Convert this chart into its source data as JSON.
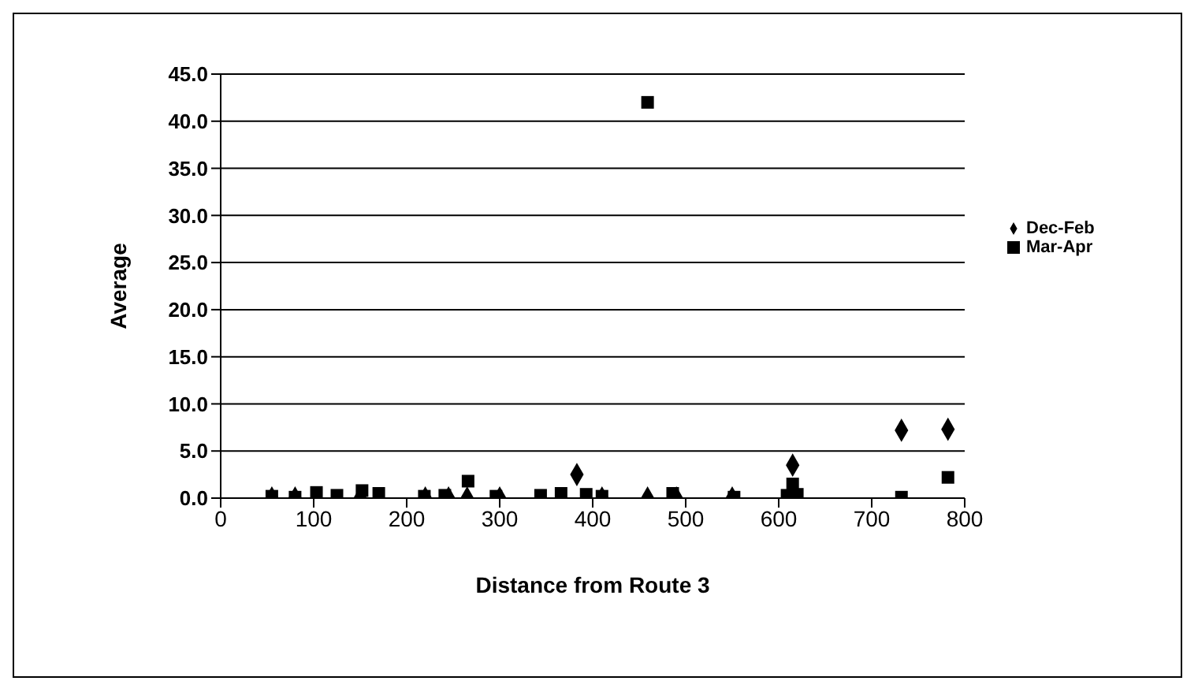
{
  "chart_data": {
    "type": "scatter",
    "xlabel": "Distance from Route 3",
    "ylabel": "Average",
    "xlim": [
      0,
      800
    ],
    "xticks": [
      0,
      100,
      200,
      300,
      400,
      500,
      600,
      700,
      800
    ],
    "ylim": [
      0,
      45
    ],
    "yticks": [
      {
        "value": 0,
        "label": "0.0"
      },
      {
        "value": 5,
        "label": "5.0"
      },
      {
        "value": 10,
        "label": "10.0"
      },
      {
        "value": 15,
        "label": "15.0"
      },
      {
        "value": 20,
        "label": "20.0"
      },
      {
        "value": 25,
        "label": "25.0"
      },
      {
        "value": 30,
        "label": "30.0"
      },
      {
        "value": 35,
        "label": "35.0"
      },
      {
        "value": 40,
        "label": "40.0"
      },
      {
        "value": 45,
        "label": "45.0"
      }
    ],
    "grid": "y",
    "legend": "right",
    "series": [
      {
        "name": "Dec-Feb",
        "color": "#000000",
        "marker": "diamond",
        "x": [
          55,
          80,
          150,
          220,
          245,
          265,
          300,
          383,
          410,
          459,
          490,
          550,
          615,
          732,
          782
        ],
        "values": [
          0,
          0,
          0,
          0,
          0,
          0,
          0,
          2.5,
          0,
          0,
          0,
          0,
          3.5,
          7.2,
          7.3
        ]
      },
      {
        "name": "Mar-Apr",
        "color": "#000000",
        "marker": "square",
        "x": [
          55,
          80,
          103,
          125,
          152,
          170,
          219,
          241,
          266,
          296,
          344,
          366,
          393,
          410,
          459,
          486,
          552,
          609,
          615,
          620,
          732,
          782
        ],
        "values": [
          0.2,
          0.1,
          0.6,
          0.3,
          0.8,
          0.5,
          0.2,
          0.3,
          1.8,
          0.2,
          0.3,
          0.5,
          0.4,
          0.2,
          42,
          0.5,
          0.1,
          0.3,
          1.5,
          0.4,
          0.1,
          2.2
        ]
      }
    ]
  }
}
